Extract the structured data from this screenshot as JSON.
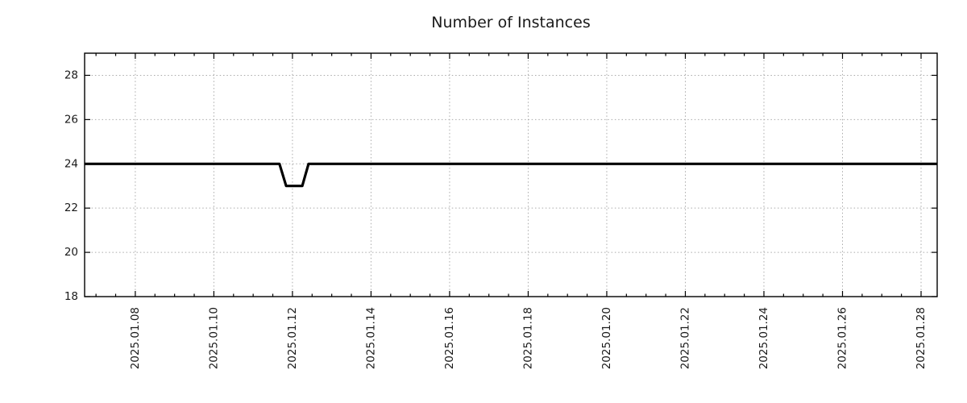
{
  "chart_data": {
    "type": "line",
    "title": "Number of Instances",
    "xlabel": "",
    "ylabel": "",
    "grid": true,
    "legend": false,
    "x_axis": {
      "kind": "time",
      "tick_labels": [
        "2025.01.08",
        "2025.01.10",
        "2025.01.12",
        "2025.01.14",
        "2025.01.16",
        "2025.01.18",
        "2025.01.20",
        "2025.01.22",
        "2025.01.24",
        "2025.01.26",
        "2025.01.28"
      ],
      "tick_days": [
        8,
        10,
        12,
        14,
        16,
        18,
        20,
        22,
        24,
        26,
        28
      ],
      "range_days": [
        6.71,
        28.41
      ],
      "minor_tick_interval_days": 0.5,
      "label_rotation_deg": 90
    },
    "y_axis": {
      "tick_labels": [
        "18",
        "20",
        "22",
        "24",
        "26",
        "28"
      ],
      "tick_values": [
        18,
        20,
        22,
        24,
        26,
        28
      ],
      "range": [
        18,
        29
      ]
    },
    "series": [
      {
        "name": "instances",
        "summary": "Constant at 24 instances, with a brief dip to 23 from late 2025-01-11 to the morning of 2025-01-12",
        "points": [
          {
            "day": 6.71,
            "value": 24
          },
          {
            "day": 11.67,
            "value": 24
          },
          {
            "day": 11.84,
            "value": 23
          },
          {
            "day": 12.25,
            "value": 23
          },
          {
            "day": 12.41,
            "value": 24
          },
          {
            "day": 28.41,
            "value": 24
          }
        ]
      }
    ],
    "colors": {
      "line": "#000000",
      "grid": "#aaaaaa",
      "axis": "#000000",
      "text": "#1a1a1a",
      "background": "#ffffff"
    }
  }
}
